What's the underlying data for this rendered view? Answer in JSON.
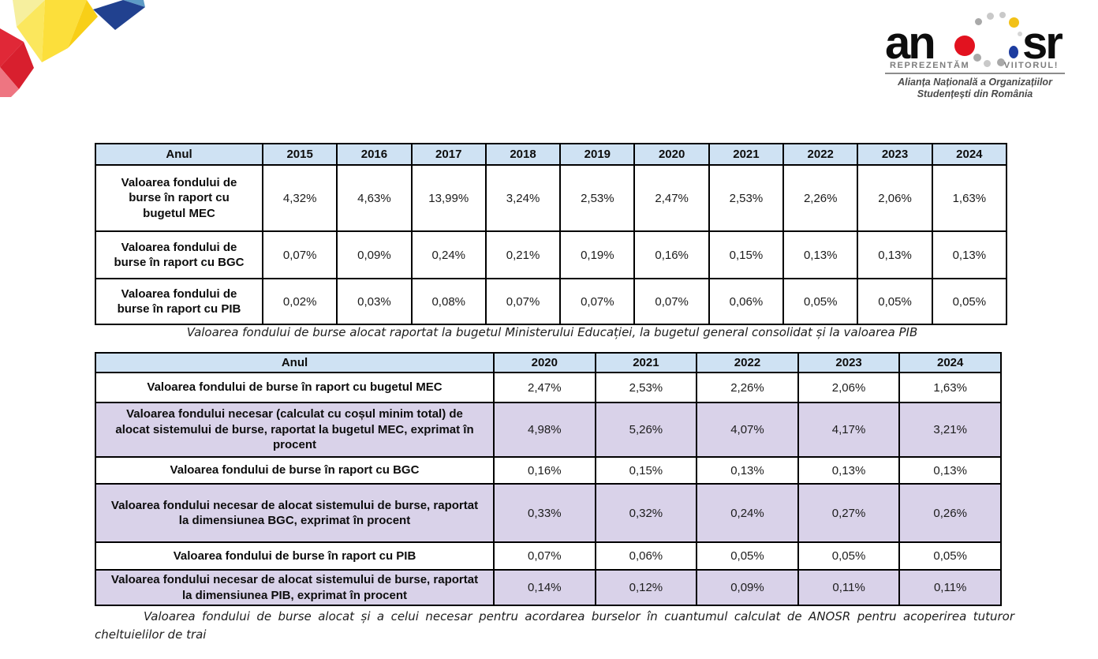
{
  "colors": {
    "header_bg": "#cfe2f3",
    "highlight_bg": "#d9d2e9",
    "table_border": "#000000",
    "brand_red": "#e02837",
    "brand_red_dark": "#d81f2e",
    "brand_pink": "#ee7581",
    "brand_yellow": "#fcdf3b",
    "brand_yellow_pale": "#f6ef9e",
    "brand_yellow_light": "#fbe75d",
    "brand_gold": "#f8cf17",
    "brand_navy": "#21418f",
    "brand_lightblue": "#5d9bc6",
    "dot_red": "#e2121f",
    "dot_yellow": "#f2c118",
    "dot_blue": "#1d3da0",
    "dot_gray": "#a9a9a9",
    "dot_gray_light": "#c9c9c9"
  },
  "logo": {
    "wordmark_prefix": "an",
    "wordmark_suffix": "sr",
    "tagline_left": "REPREZENTĂM",
    "tagline_right": "VIITORUL!",
    "org_line1": "Alianța Națională a Organizațiilor",
    "org_line2": "Studențești din România"
  },
  "table1": {
    "caption": "Valoarea fondului de burse alocat raportat la bugetul Ministerului Educației, la bugetul general consolidat și la valoarea PIB",
    "header": [
      "Anul",
      "2015",
      "2016",
      "2017",
      "2018",
      "2019",
      "2020",
      "2021",
      "2022",
      "2023",
      "2024"
    ],
    "rows": [
      {
        "label": "Valoarea fondului de burse în raport cu bugetul MEC",
        "values": [
          "4,32%",
          "4,63%",
          "13,99%",
          "3,24%",
          "2,53%",
          "2,47%",
          "2,53%",
          "2,26%",
          "2,06%",
          "1,63%"
        ],
        "highlight": false
      },
      {
        "label": "Valoarea fondului de burse în raport cu BGC",
        "values": [
          "0,07%",
          "0,09%",
          "0,24%",
          "0,21%",
          "0,19%",
          "0,16%",
          "0,15%",
          "0,13%",
          "0,13%",
          "0,13%"
        ],
        "highlight": false
      },
      {
        "label": "Valoarea fondului de burse în raport cu PIB",
        "values": [
          "0,02%",
          "0,03%",
          "0,08%",
          "0,07%",
          "0,07%",
          "0,07%",
          "0,06%",
          "0,05%",
          "0,05%",
          "0,05%"
        ],
        "highlight": false
      }
    ]
  },
  "table2": {
    "caption": "Valoarea fondului de burse alocat și a celui necesar pentru acordarea burselor în cuantumul calculat de ANOSR pentru acoperirea tuturor cheltuielilor de trai",
    "header": [
      "Anul",
      "2020",
      "2021",
      "2022",
      "2023",
      "2024"
    ],
    "rows": [
      {
        "label": "Valoarea fondului de burse în raport cu bugetul MEC",
        "values": [
          "2,47%",
          "2,53%",
          "2,26%",
          "2,06%",
          "1,63%"
        ],
        "highlight": false
      },
      {
        "label": "Valoarea fondului necesar (calculat cu coșul minim total) de alocat sistemului de burse, raportat la bugetul MEC, exprimat în procent",
        "values": [
          "4,98%",
          "5,26%",
          "4,07%",
          "4,17%",
          "3,21%"
        ],
        "highlight": true
      },
      {
        "label": "Valoarea fondului de burse în raport cu BGC",
        "values": [
          "0,16%",
          "0,15%",
          "0,13%",
          "0,13%",
          "0,13%"
        ],
        "highlight": false
      },
      {
        "label": "Valoarea fondului necesar de alocat sistemului de burse, raportat la dimensiunea BGC, exprimat în procent",
        "values": [
          "0,33%",
          "0,32%",
          "0,24%",
          "0,27%",
          "0,26%"
        ],
        "highlight": true
      },
      {
        "label": "Valoarea fondului de burse în raport cu PIB",
        "values": [
          "0,07%",
          "0,06%",
          "0,05%",
          "0,05%",
          "0,05%"
        ],
        "highlight": false
      },
      {
        "label": "Valoarea fondului necesar de alocat sistemului de burse, raportat la dimensiunea PIB, exprimat în procent",
        "values": [
          "0,14%",
          "0,12%",
          "0,09%",
          "0,11%",
          "0,11%"
        ],
        "highlight": true
      }
    ]
  }
}
